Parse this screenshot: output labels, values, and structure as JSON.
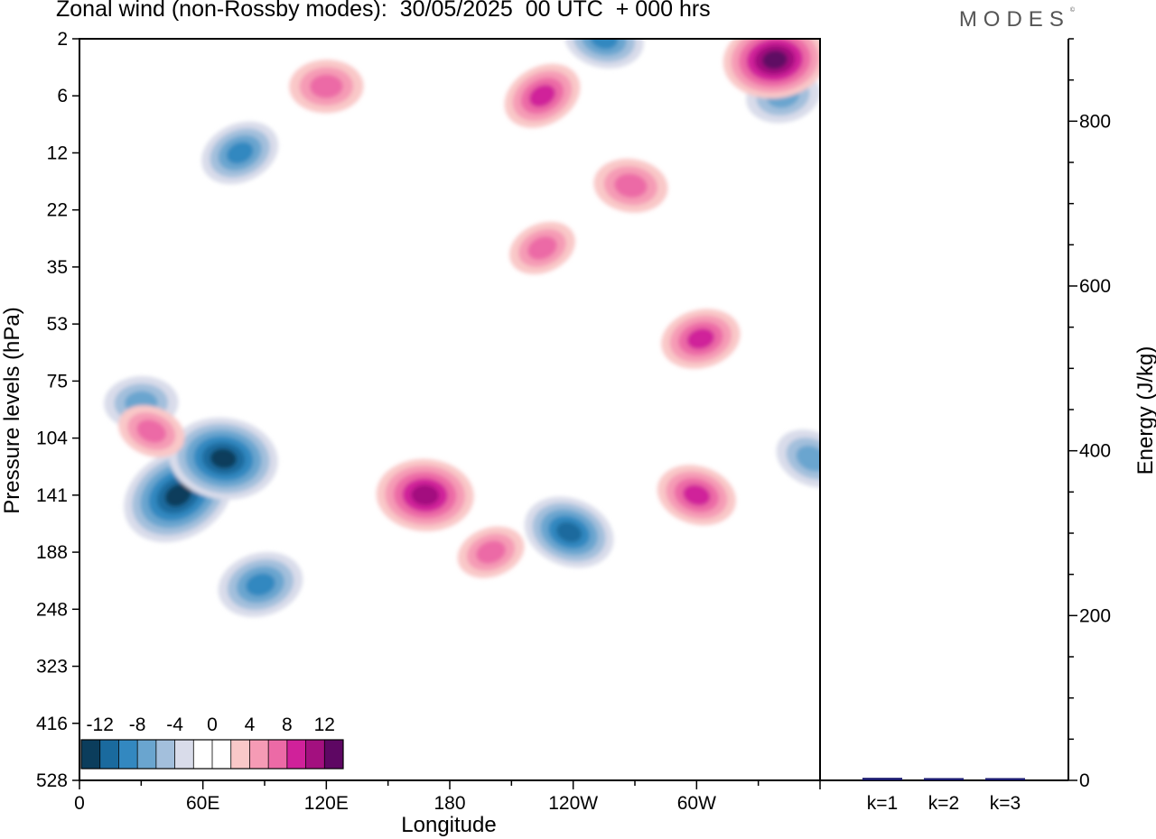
{
  "title": "Zonal wind (non-Rossby modes):  30/05/2025  00 UTC  + 000 hrs",
  "logo": "MODES",
  "logo_mark": "©",
  "chart_data": [
    {
      "type": "heatmap",
      "title": "Zonal wind (non-Rossby modes):  30/05/2025  00 UTC  + 000 hrs",
      "xlabel": "Longitude",
      "ylabel": "Pressure levels (hPa)",
      "x_ticks": [
        "0",
        "60E",
        "120E",
        "180",
        "120W",
        "60W"
      ],
      "x_tick_values": [
        0,
        60,
        120,
        180,
        240,
        300
      ],
      "xlim": [
        0,
        360
      ],
      "y_ticks": [
        "2",
        "6",
        "12",
        "22",
        "35",
        "53",
        "75",
        "104",
        "141",
        "188",
        "248",
        "323",
        "416",
        "528"
      ],
      "colorbar": {
        "labels": [
          "-12",
          "-8",
          "-4",
          "0",
          "4",
          "8",
          "12"
        ],
        "label_values": [
          -12,
          -8,
          -4,
          0,
          4,
          8,
          12
        ],
        "colors": [
          "#0b3d5c",
          "#1a6a9e",
          "#3388c0",
          "#6aa5cf",
          "#a3bfdc",
          "#d9dcea",
          "#ffffff",
          "#ffffff",
          "#f9c8c8",
          "#f59bb5",
          "#ec6aa6",
          "#d0219a",
          "#a3107f",
          "#5e0763"
        ]
      },
      "features": [
        {
          "lon": 48,
          "level": 141,
          "value": -13
        },
        {
          "lon": 70,
          "level": 116,
          "value": -12
        },
        {
          "lon": 88,
          "level": 220,
          "value": -8
        },
        {
          "lon": 238,
          "level": 170,
          "value": -9
        },
        {
          "lon": 30,
          "level": 85,
          "value": -6
        },
        {
          "lon": 78,
          "level": 12,
          "value": -7
        },
        {
          "lon": 255,
          "level": 2,
          "value": -7
        },
        {
          "lon": 342,
          "level": 6,
          "value": -6
        },
        {
          "lon": 356,
          "level": 116,
          "value": -6
        },
        {
          "lon": 168,
          "level": 141,
          "value": 10
        },
        {
          "lon": 200,
          "level": 188,
          "value": 5
        },
        {
          "lon": 300,
          "level": 141,
          "value": 7
        },
        {
          "lon": 338,
          "level": 3,
          "value": 11
        },
        {
          "lon": 225,
          "level": 6,
          "value": 7
        },
        {
          "lon": 268,
          "level": 17,
          "value": 6
        },
        {
          "lon": 302,
          "level": 58,
          "value": 7
        },
        {
          "lon": 35,
          "level": 100,
          "value": 5
        },
        {
          "lon": 120,
          "level": 5,
          "value": 6
        },
        {
          "lon": 225,
          "level": 30,
          "value": 5
        }
      ]
    },
    {
      "type": "bar",
      "ylabel": "Energy (J/kg)",
      "categories": [
        "k=1",
        "k=2",
        "k=3"
      ],
      "values": [
        2,
        1,
        0.5
      ],
      "ylim": [
        0,
        900
      ],
      "y_ticks": [
        "0",
        "200",
        "400",
        "600",
        "800"
      ],
      "y_tick_values": [
        0,
        200,
        400,
        600,
        800
      ],
      "bar_color": "#1a1a6e"
    }
  ]
}
